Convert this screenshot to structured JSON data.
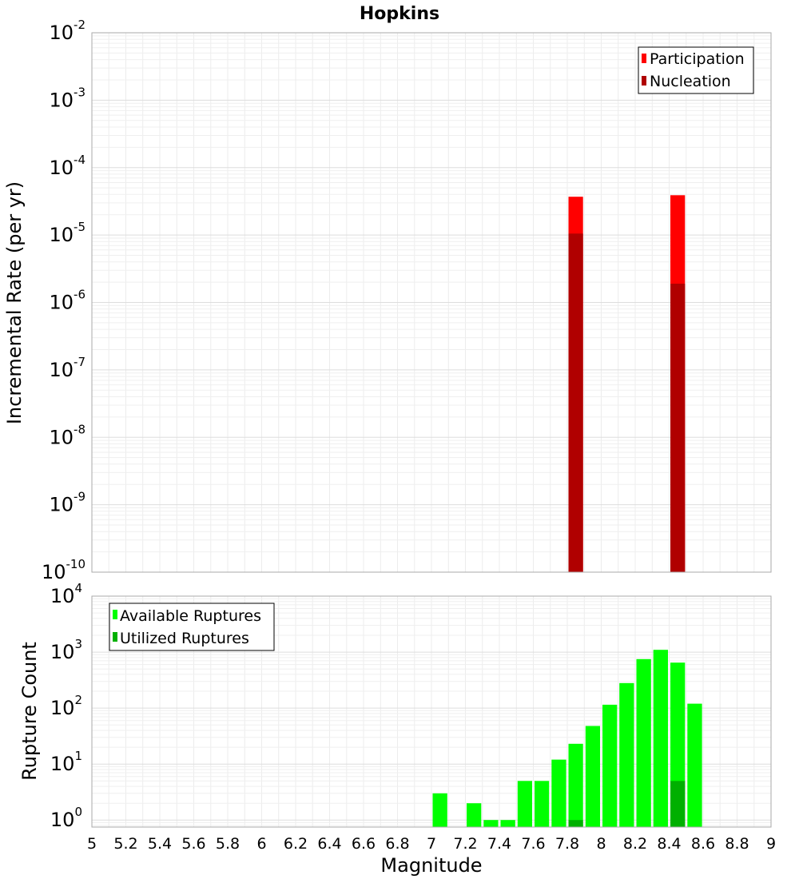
{
  "chart_data": [
    {
      "type": "bar",
      "title": "Hopkins",
      "xlabel": "",
      "ylabel": "Incremental Rate (per yr)",
      "yscale": "log",
      "ylim": [
        1e-10,
        0.01
      ],
      "xlim": [
        5,
        9
      ],
      "grid": true,
      "legend_position": "top-right",
      "y_ticks": [
        {
          "base": "10",
          "exp": "-2"
        },
        {
          "base": "10",
          "exp": "-3"
        },
        {
          "base": "10",
          "exp": "-4"
        },
        {
          "base": "10",
          "exp": "-5"
        },
        {
          "base": "10",
          "exp": "-6"
        },
        {
          "base": "10",
          "exp": "-7"
        },
        {
          "base": "10",
          "exp": "-8"
        },
        {
          "base": "10",
          "exp": "-9"
        },
        {
          "base": "10",
          "exp": "-10"
        }
      ],
      "y_tick_values": [
        0.01,
        0.001,
        0.0001,
        1e-05,
        1e-06,
        1e-07,
        1e-08,
        1e-09,
        1e-10
      ],
      "bin_width": 0.1,
      "series": [
        {
          "name": "Participation",
          "color": "#ff0000",
          "x": [
            7.85,
            8.45
          ],
          "values": [
            3.7e-05,
            3.9e-05
          ]
        },
        {
          "name": "Nucleation",
          "color": "#b00000",
          "x": [
            7.85,
            8.45
          ],
          "values": [
            1.05e-05,
            1.9e-06
          ]
        }
      ]
    },
    {
      "type": "bar",
      "title": "",
      "xlabel": "Magnitude",
      "ylabel": "Rupture Count",
      "yscale": "log",
      "ylim": [
        0.75,
        10000
      ],
      "xlim": [
        5,
        9
      ],
      "grid": true,
      "legend_position": "top-left",
      "x_ticks": [
        "5",
        "5.2",
        "5.4",
        "5.6",
        "5.8",
        "6",
        "6.2",
        "6.4",
        "6.6",
        "6.8",
        "7",
        "7.2",
        "7.4",
        "7.6",
        "7.8",
        "8",
        "8.2",
        "8.4",
        "8.6",
        "8.8",
        "9"
      ],
      "y_ticks": [
        {
          "base": "10",
          "exp": "4"
        },
        {
          "base": "10",
          "exp": "3"
        },
        {
          "base": "10",
          "exp": "2"
        },
        {
          "base": "10",
          "exp": "1"
        },
        {
          "base": "10",
          "exp": "0"
        }
      ],
      "y_tick_values": [
        10000,
        1000,
        100,
        10,
        1
      ],
      "bin_width": 0.1,
      "series": [
        {
          "name": "Available Ruptures",
          "color": "#00ff00",
          "x": [
            7.05,
            7.25,
            7.35,
            7.45,
            7.55,
            7.65,
            7.75,
            7.85,
            7.95,
            8.05,
            8.15,
            8.25,
            8.35,
            8.45,
            8.55
          ],
          "values": [
            3,
            2,
            1,
            1,
            5,
            5,
            12,
            23,
            48,
            115,
            280,
            750,
            1100,
            650,
            120
          ]
        },
        {
          "name": "Utilized Ruptures",
          "color": "#00b000",
          "x": [
            7.85,
            8.45
          ],
          "values": [
            1,
            5
          ]
        }
      ]
    }
  ]
}
